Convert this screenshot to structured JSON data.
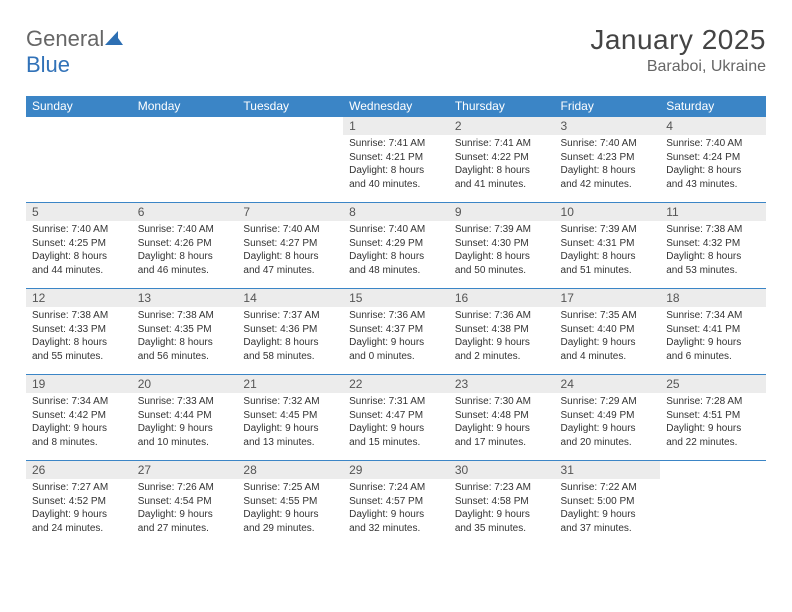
{
  "logo": {
    "part1": "General",
    "part2": "Blue"
  },
  "title": "January 2025",
  "location": "Baraboi, Ukraine",
  "colors": {
    "header_bg": "#3b85c6",
    "header_text": "#ffffff",
    "daynum_bg": "#ececec",
    "body_text": "#333333",
    "rule": "#3b85c6",
    "logo_gray": "#666666",
    "logo_blue": "#3172b8"
  },
  "weekdays": [
    "Sunday",
    "Monday",
    "Tuesday",
    "Wednesday",
    "Thursday",
    "Friday",
    "Saturday"
  ],
  "weeks": [
    [
      null,
      null,
      null,
      {
        "n": "1",
        "sr": "Sunrise: 7:41 AM",
        "ss": "Sunset: 4:21 PM",
        "d1": "Daylight: 8 hours",
        "d2": "and 40 minutes."
      },
      {
        "n": "2",
        "sr": "Sunrise: 7:41 AM",
        "ss": "Sunset: 4:22 PM",
        "d1": "Daylight: 8 hours",
        "d2": "and 41 minutes."
      },
      {
        "n": "3",
        "sr": "Sunrise: 7:40 AM",
        "ss": "Sunset: 4:23 PM",
        "d1": "Daylight: 8 hours",
        "d2": "and 42 minutes."
      },
      {
        "n": "4",
        "sr": "Sunrise: 7:40 AM",
        "ss": "Sunset: 4:24 PM",
        "d1": "Daylight: 8 hours",
        "d2": "and 43 minutes."
      }
    ],
    [
      {
        "n": "5",
        "sr": "Sunrise: 7:40 AM",
        "ss": "Sunset: 4:25 PM",
        "d1": "Daylight: 8 hours",
        "d2": "and 44 minutes."
      },
      {
        "n": "6",
        "sr": "Sunrise: 7:40 AM",
        "ss": "Sunset: 4:26 PM",
        "d1": "Daylight: 8 hours",
        "d2": "and 46 minutes."
      },
      {
        "n": "7",
        "sr": "Sunrise: 7:40 AM",
        "ss": "Sunset: 4:27 PM",
        "d1": "Daylight: 8 hours",
        "d2": "and 47 minutes."
      },
      {
        "n": "8",
        "sr": "Sunrise: 7:40 AM",
        "ss": "Sunset: 4:29 PM",
        "d1": "Daylight: 8 hours",
        "d2": "and 48 minutes."
      },
      {
        "n": "9",
        "sr": "Sunrise: 7:39 AM",
        "ss": "Sunset: 4:30 PM",
        "d1": "Daylight: 8 hours",
        "d2": "and 50 minutes."
      },
      {
        "n": "10",
        "sr": "Sunrise: 7:39 AM",
        "ss": "Sunset: 4:31 PM",
        "d1": "Daylight: 8 hours",
        "d2": "and 51 minutes."
      },
      {
        "n": "11",
        "sr": "Sunrise: 7:38 AM",
        "ss": "Sunset: 4:32 PM",
        "d1": "Daylight: 8 hours",
        "d2": "and 53 minutes."
      }
    ],
    [
      {
        "n": "12",
        "sr": "Sunrise: 7:38 AM",
        "ss": "Sunset: 4:33 PM",
        "d1": "Daylight: 8 hours",
        "d2": "and 55 minutes."
      },
      {
        "n": "13",
        "sr": "Sunrise: 7:38 AM",
        "ss": "Sunset: 4:35 PM",
        "d1": "Daylight: 8 hours",
        "d2": "and 56 minutes."
      },
      {
        "n": "14",
        "sr": "Sunrise: 7:37 AM",
        "ss": "Sunset: 4:36 PM",
        "d1": "Daylight: 8 hours",
        "d2": "and 58 minutes."
      },
      {
        "n": "15",
        "sr": "Sunrise: 7:36 AM",
        "ss": "Sunset: 4:37 PM",
        "d1": "Daylight: 9 hours",
        "d2": "and 0 minutes."
      },
      {
        "n": "16",
        "sr": "Sunrise: 7:36 AM",
        "ss": "Sunset: 4:38 PM",
        "d1": "Daylight: 9 hours",
        "d2": "and 2 minutes."
      },
      {
        "n": "17",
        "sr": "Sunrise: 7:35 AM",
        "ss": "Sunset: 4:40 PM",
        "d1": "Daylight: 9 hours",
        "d2": "and 4 minutes."
      },
      {
        "n": "18",
        "sr": "Sunrise: 7:34 AM",
        "ss": "Sunset: 4:41 PM",
        "d1": "Daylight: 9 hours",
        "d2": "and 6 minutes."
      }
    ],
    [
      {
        "n": "19",
        "sr": "Sunrise: 7:34 AM",
        "ss": "Sunset: 4:42 PM",
        "d1": "Daylight: 9 hours",
        "d2": "and 8 minutes."
      },
      {
        "n": "20",
        "sr": "Sunrise: 7:33 AM",
        "ss": "Sunset: 4:44 PM",
        "d1": "Daylight: 9 hours",
        "d2": "and 10 minutes."
      },
      {
        "n": "21",
        "sr": "Sunrise: 7:32 AM",
        "ss": "Sunset: 4:45 PM",
        "d1": "Daylight: 9 hours",
        "d2": "and 13 minutes."
      },
      {
        "n": "22",
        "sr": "Sunrise: 7:31 AM",
        "ss": "Sunset: 4:47 PM",
        "d1": "Daylight: 9 hours",
        "d2": "and 15 minutes."
      },
      {
        "n": "23",
        "sr": "Sunrise: 7:30 AM",
        "ss": "Sunset: 4:48 PM",
        "d1": "Daylight: 9 hours",
        "d2": "and 17 minutes."
      },
      {
        "n": "24",
        "sr": "Sunrise: 7:29 AM",
        "ss": "Sunset: 4:49 PM",
        "d1": "Daylight: 9 hours",
        "d2": "and 20 minutes."
      },
      {
        "n": "25",
        "sr": "Sunrise: 7:28 AM",
        "ss": "Sunset: 4:51 PM",
        "d1": "Daylight: 9 hours",
        "d2": "and 22 minutes."
      }
    ],
    [
      {
        "n": "26",
        "sr": "Sunrise: 7:27 AM",
        "ss": "Sunset: 4:52 PM",
        "d1": "Daylight: 9 hours",
        "d2": "and 24 minutes."
      },
      {
        "n": "27",
        "sr": "Sunrise: 7:26 AM",
        "ss": "Sunset: 4:54 PM",
        "d1": "Daylight: 9 hours",
        "d2": "and 27 minutes."
      },
      {
        "n": "28",
        "sr": "Sunrise: 7:25 AM",
        "ss": "Sunset: 4:55 PM",
        "d1": "Daylight: 9 hours",
        "d2": "and 29 minutes."
      },
      {
        "n": "29",
        "sr": "Sunrise: 7:24 AM",
        "ss": "Sunset: 4:57 PM",
        "d1": "Daylight: 9 hours",
        "d2": "and 32 minutes."
      },
      {
        "n": "30",
        "sr": "Sunrise: 7:23 AM",
        "ss": "Sunset: 4:58 PM",
        "d1": "Daylight: 9 hours",
        "d2": "and 35 minutes."
      },
      {
        "n": "31",
        "sr": "Sunrise: 7:22 AM",
        "ss": "Sunset: 5:00 PM",
        "d1": "Daylight: 9 hours",
        "d2": "and 37 minutes."
      },
      null
    ]
  ]
}
